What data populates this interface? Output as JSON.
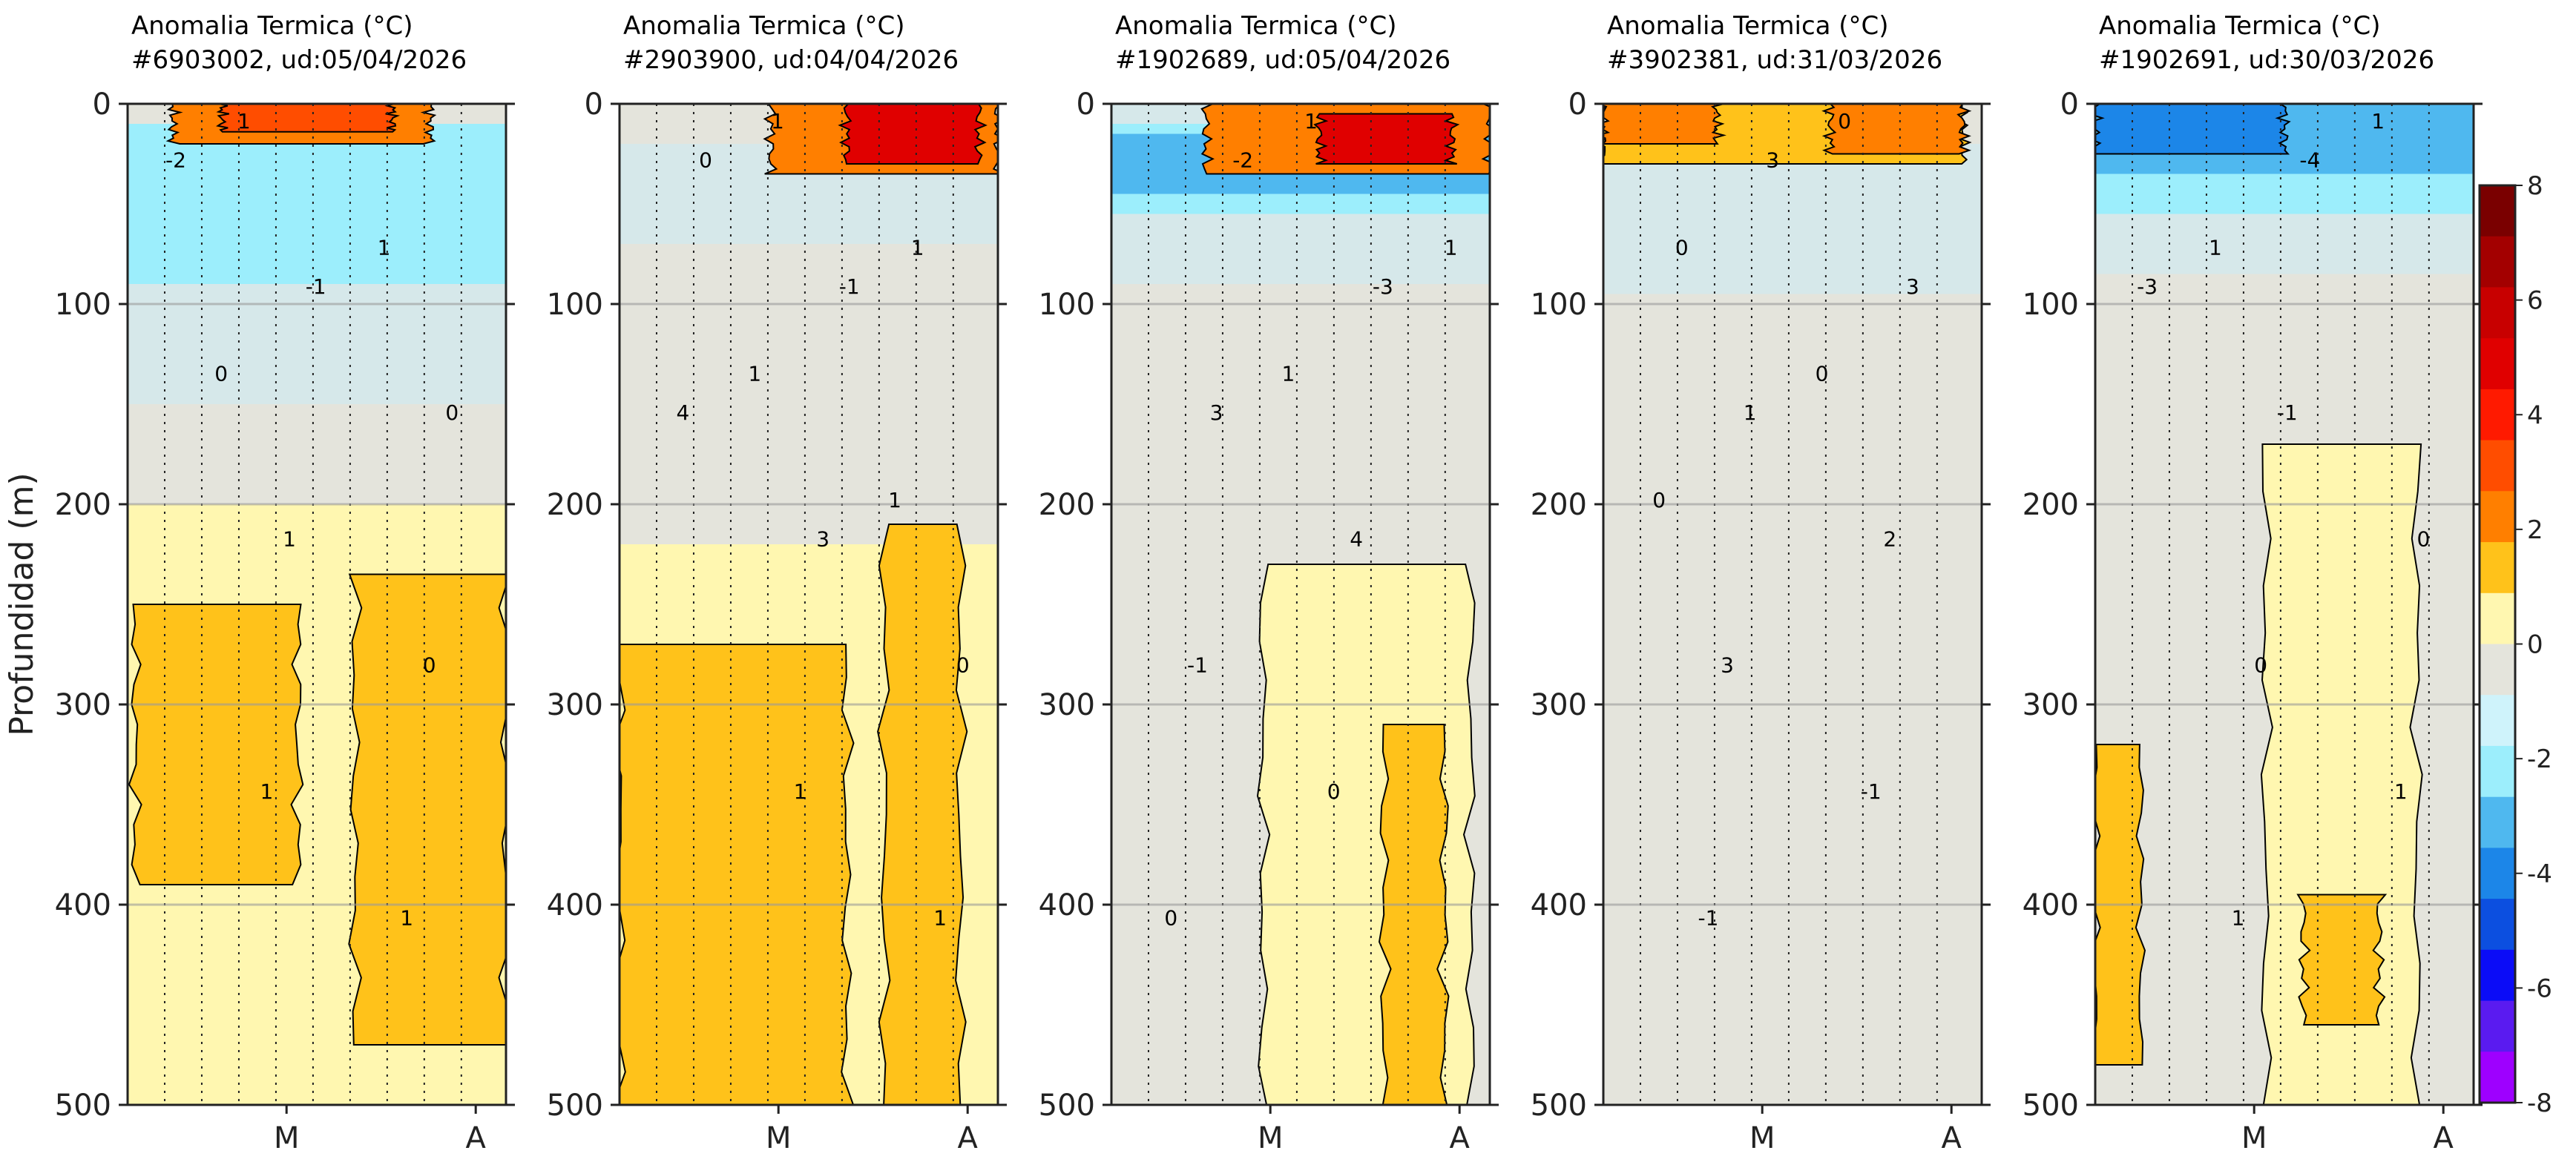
{
  "chart_data": {
    "type": "heatmap",
    "ylabel": "Profundidad (m)",
    "ylim": [
      500,
      0
    ],
    "yticks": [
      "0",
      "100",
      "200",
      "300",
      "400",
      "500"
    ],
    "xticks": [
      "M",
      "A"
    ],
    "grid": true,
    "colorbar": {
      "ticks": [
        "8",
        "6",
        "4",
        "2",
        "0",
        "-2",
        "-4",
        "-6",
        "-8"
      ],
      "levels": [
        8,
        7,
        6,
        5,
        4,
        3,
        2,
        1,
        0,
        -1,
        -2,
        -3,
        -4,
        -5,
        -6,
        -7,
        -8
      ],
      "colors": [
        "#7a0000",
        "#a30000",
        "#c80000",
        "#e00000",
        "#ff1a00",
        "#ff4d00",
        "#ff7f00",
        "#ffc21a",
        "#fff7b0",
        "#e4e4dc",
        "#cff3fb",
        "#9ceefc",
        "#4fb8ef",
        "#1c86e8",
        "#0c4fe0",
        "#0b0cf7",
        "#5a1bf0",
        "#9e00ff"
      ]
    },
    "panels": [
      {
        "title": "Anomalia Termica (°C)",
        "subtitle": "#6903002, ud:05/04/2026",
        "layers": [
          {
            "level": 0,
            "region": "background"
          },
          {
            "level": -1,
            "depth_range": [
              10,
              150
            ]
          },
          {
            "level": -2,
            "depth_range": [
              10,
              90
            ]
          },
          {
            "level": 1,
            "depth_range": [
              200,
              500
            ]
          },
          {
            "level": 2,
            "depth_range": [
              250,
              390
            ],
            "x_range": [
              0.02,
              0.45
            ]
          },
          {
            "level": 2,
            "depth_range": [
              235,
              470
            ],
            "x_range": [
              0.6,
              1.0
            ]
          },
          {
            "level": 3,
            "depth_range": [
              0,
              20
            ],
            "x_range": [
              0.12,
              0.8
            ]
          },
          {
            "level": 4,
            "depth_range": [
              0,
              14
            ],
            "x_range": [
              0.25,
              0.7
            ]
          }
        ],
        "contour_labels": [
          "-2",
          "-1",
          "0",
          "1",
          "0",
          "1",
          "1",
          "1",
          "1",
          "0"
        ]
      },
      {
        "title": "Anomalia Termica (°C)",
        "subtitle": "#2903900, ud:04/04/2026",
        "layers": [
          {
            "level": 0,
            "region": "background"
          },
          {
            "level": -1,
            "depth_range": [
              20,
              70
            ]
          },
          {
            "level": 1,
            "depth_range": [
              220,
              500
            ]
          },
          {
            "level": 2,
            "depth_range": [
              270,
              500
            ],
            "x_range": [
              0.0,
              0.6
            ]
          },
          {
            "level": 2,
            "depth_range": [
              210,
              500
            ],
            "x_range": [
              0.7,
              0.9
            ]
          },
          {
            "level": 3,
            "depth_range": [
              0,
              35
            ],
            "x_range": [
              0.4,
              1.0
            ]
          },
          {
            "level": 5,
            "depth_range": [
              0,
              30
            ],
            "x_range": [
              0.6,
              0.95
            ]
          }
        ],
        "contour_labels": [
          "0",
          "-1",
          "4",
          "3",
          "0",
          "1",
          "1",
          "1",
          "1",
          "1",
          "1"
        ]
      },
      {
        "title": "Anomalia Termica (°C)",
        "subtitle": "#1902689, ud:05/04/2026",
        "layers": [
          {
            "level": 0,
            "region": "background"
          },
          {
            "level": -1,
            "depth_range": [
              0,
              90
            ]
          },
          {
            "level": -2,
            "depth_range": [
              10,
              55
            ]
          },
          {
            "level": -3,
            "depth_range": [
              15,
              45
            ]
          },
          {
            "level": 1,
            "depth_range": [
              230,
              500
            ],
            "x_range": [
              0.4,
              0.95
            ]
          },
          {
            "level": 2,
            "depth_range": [
              310,
              500
            ],
            "x_range": [
              0.72,
              0.88
            ]
          },
          {
            "level": 3,
            "depth_range": [
              0,
              35
            ],
            "x_range": [
              0.25,
              1.0
            ]
          },
          {
            "level": 5,
            "depth_range": [
              5,
              30
            ],
            "x_range": [
              0.55,
              0.9
            ]
          }
        ],
        "contour_labels": [
          "-2",
          "-3",
          "3",
          "4",
          "-1",
          "0",
          "0",
          "1",
          "1",
          "1"
        ]
      },
      {
        "title": "Anomalia Termica (°C)",
        "subtitle": "#3902381, ud:31/03/2026",
        "layers": [
          {
            "level": 0,
            "region": "background"
          },
          {
            "level": -1,
            "depth_range": [
              20,
              95
            ]
          },
          {
            "level": 2,
            "depth_range": [
              0,
              30
            ],
            "x_range": [
              0.0,
              0.95
            ]
          },
          {
            "level": 3,
            "depth_range": [
              0,
              20
            ],
            "x_range": [
              0.0,
              0.3
            ]
          },
          {
            "level": 3,
            "depth_range": [
              0,
              25
            ],
            "x_range": [
              0.6,
              0.95
            ]
          }
        ],
        "contour_labels": [
          "3",
          "3",
          "1",
          "2",
          "3",
          "-1",
          "-1",
          "0",
          "0",
          "0",
          "0"
        ]
      },
      {
        "title": "Anomalia Termica (°C)",
        "subtitle": "#1902691, ud:30/03/2026",
        "layers": [
          {
            "level": 0,
            "region": "background"
          },
          {
            "level": -1,
            "depth_range": [
              0,
              85
            ]
          },
          {
            "level": -2,
            "depth_range": [
              0,
              55
            ]
          },
          {
            "level": -3,
            "depth_range": [
              0,
              35
            ]
          },
          {
            "level": -4,
            "depth_range": [
              0,
              25
            ],
            "x_range": [
              0.0,
              0.5
            ]
          },
          {
            "level": 1,
            "depth_range": [
              170,
              500
            ],
            "x_range": [
              0.45,
              0.85
            ]
          },
          {
            "level": 2,
            "depth_range": [
              320,
              480
            ],
            "x_range": [
              0.0,
              0.12
            ]
          },
          {
            "level": 2,
            "depth_range": [
              395,
              460
            ],
            "x_range": [
              0.55,
              0.75
            ]
          }
        ],
        "contour_labels": [
          "-4",
          "-3",
          "-1",
          "0",
          "0",
          "1",
          "1",
          "1",
          "1"
        ]
      }
    ]
  }
}
